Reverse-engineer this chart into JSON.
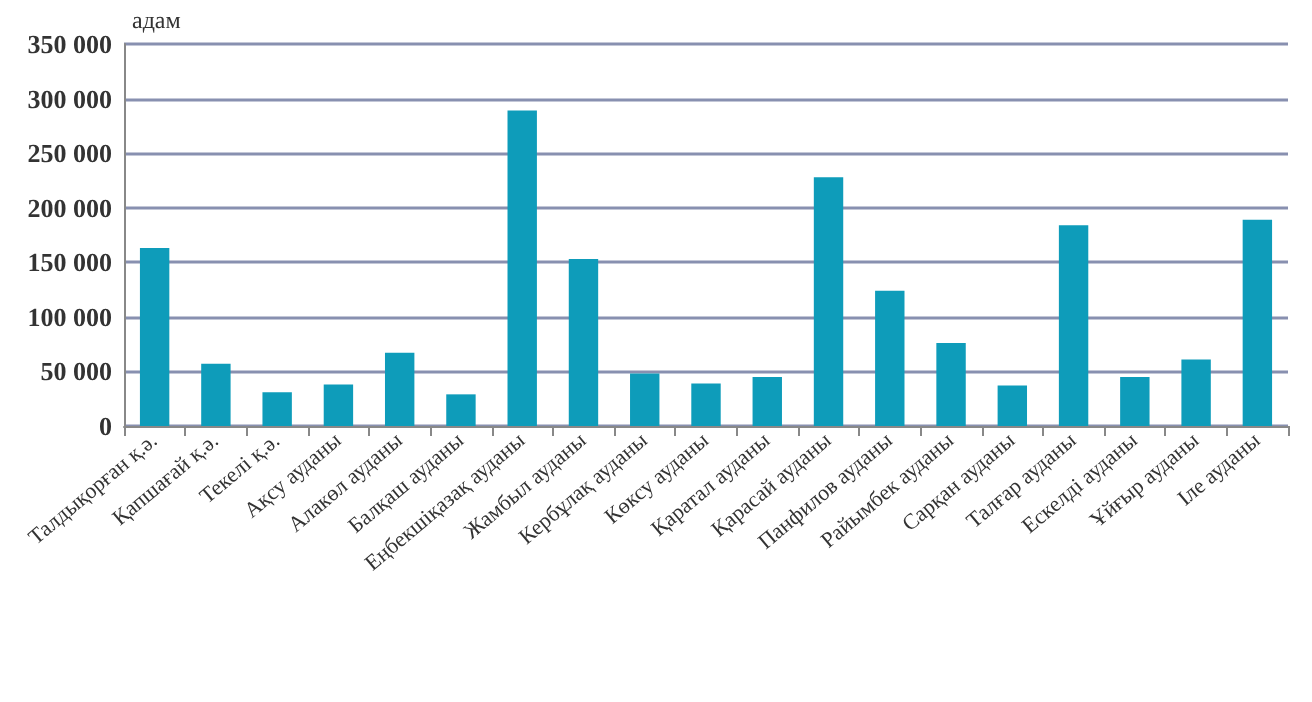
{
  "chart_data": {
    "type": "bar",
    "ylabel": "адам",
    "categories": [
      "Талдықорған қ.ә.",
      "Қапшағай қ.ә.",
      "Текелі қ.ә.",
      "Ақсу ауданы",
      "Алакөл ауданы",
      "Балқаш ауданы",
      "Еңбекшіқазақ ауданы",
      "Жамбыл ауданы",
      "Кербұлақ ауданы",
      "Көксу ауданы",
      "Қаратал ауданы",
      "Қарасай ауданы",
      "Панфилов ауданы",
      "Райымбек ауданы",
      "Сарқан ауданы",
      "Талғар ауданы",
      "Ескелді ауданы",
      "Ұйғыр ауданы",
      "Іле ауданы"
    ],
    "values": [
      163000,
      57000,
      31000,
      38000,
      67000,
      29000,
      289000,
      153000,
      48000,
      39000,
      45000,
      228000,
      124000,
      76000,
      37000,
      184000,
      45000,
      61000,
      189000
    ],
    "color": "#0e9cba",
    "ylim": [
      0,
      350000
    ],
    "yticks": [
      {
        "value": 0,
        "label": "0"
      },
      {
        "value": 50000,
        "label": "50 000"
      },
      {
        "value": 100000,
        "label": "100 000"
      },
      {
        "value": 150000,
        "label": "150 000"
      },
      {
        "value": 200000,
        "label": "200 000"
      },
      {
        "value": 250000,
        "label": "250 000"
      },
      {
        "value": 300000,
        "label": "300 000"
      },
      {
        "value": 350000,
        "label": "350 000"
      }
    ],
    "grid": "y"
  }
}
